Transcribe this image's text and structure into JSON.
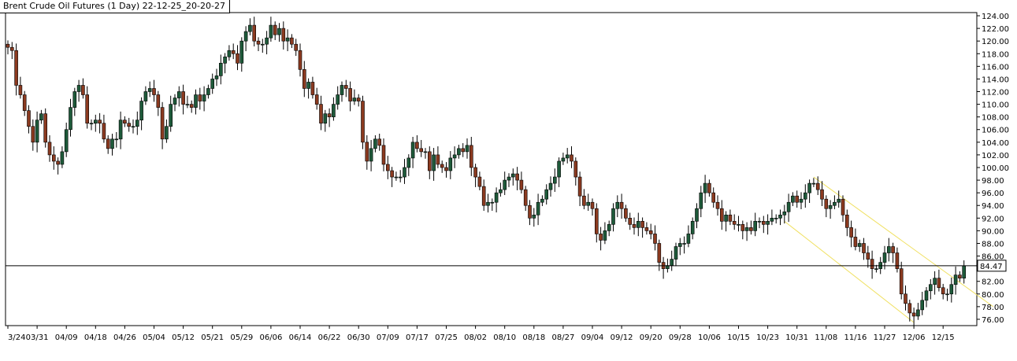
{
  "window": {
    "title": "Brent Crude Oil Futures (1 Day) 22-12-25_20-20-27"
  },
  "colors": {
    "bull": "#1e5a3a",
    "bear": "#8b3a20",
    "wick": "#000000",
    "background": "#ffffff",
    "axis": "#000000",
    "last_price_line": "#000000",
    "channel": "#f0e060"
  },
  "chart_data": {
    "type": "candlestick",
    "title": "Brent Crude Oil Futures (1 Day) 22-12-25_20-20-27",
    "xlabel": "",
    "ylabel": "",
    "ylim": [
      75,
      124.5
    ],
    "grid": false,
    "legend": "none",
    "y_axis_position": "right",
    "y_ticks": [
      "124.00",
      "122.00",
      "120.00",
      "118.00",
      "116.00",
      "114.00",
      "112.00",
      "110.00",
      "108.00",
      "106.00",
      "104.00",
      "102.00",
      "100.00",
      "98.00",
      "96.00",
      "94.00",
      "92.00",
      "90.00",
      "88.00",
      "86.00",
      "84.00",
      "82.00",
      "80.00",
      "78.00",
      "76.00"
    ],
    "x_ticks": [
      {
        "label": "3/24",
        "i": 0
      },
      {
        "label": "03/31",
        "i": 7
      },
      {
        "label": "04/09",
        "i": 14
      },
      {
        "label": "04/18",
        "i": 21
      },
      {
        "label": "04/26",
        "i": 28
      },
      {
        "label": "05/04",
        "i": 35
      },
      {
        "label": "05/12",
        "i": 42
      },
      {
        "label": "05/21",
        "i": 49
      },
      {
        "label": "05/29",
        "i": 56
      },
      {
        "label": "06/06",
        "i": 63
      },
      {
        "label": "06/14",
        "i": 70
      },
      {
        "label": "06/22",
        "i": 77
      },
      {
        "label": "06/30",
        "i": 84
      },
      {
        "label": "07/09",
        "i": 91
      },
      {
        "label": "07/17",
        "i": 98
      },
      {
        "label": "07/25",
        "i": 105
      },
      {
        "label": "08/02",
        "i": 112
      },
      {
        "label": "08/10",
        "i": 119
      },
      {
        "label": "08/18",
        "i": 126
      },
      {
        "label": "08/27",
        "i": 133
      },
      {
        "label": "09/04",
        "i": 140
      },
      {
        "label": "09/12",
        "i": 147
      },
      {
        "label": "09/20",
        "i": 154
      },
      {
        "label": "09/28",
        "i": 161
      },
      {
        "label": "10/06",
        "i": 168
      },
      {
        "label": "10/15",
        "i": 175
      },
      {
        "label": "10/23",
        "i": 182
      },
      {
        "label": "10/31",
        "i": 189
      },
      {
        "label": "11/08",
        "i": 196
      },
      {
        "label": "11/16",
        "i": 203
      },
      {
        "label": "11/27",
        "i": 210
      },
      {
        "label": "12/06",
        "i": 217
      },
      {
        "label": "12/15",
        "i": 224
      }
    ],
    "last_price": 84.47,
    "last_price_label": "84.47",
    "channel": {
      "upper": [
        {
          "i": 193,
          "y": 98.5
        },
        {
          "i": 236,
          "y": 78.0
        }
      ],
      "lower": [
        {
          "i": 186,
          "y": 91.5
        },
        {
          "i": 217,
          "y": 75.5
        }
      ]
    },
    "close": [
      119.0,
      118.5,
      113.0,
      111.5,
      109.0,
      106.5,
      104.0,
      107.5,
      108.5,
      104.0,
      102.0,
      101.0,
      100.5,
      102.5,
      106.0,
      109.5,
      112.0,
      113.0,
      111.5,
      107.0,
      107.0,
      107.5,
      107.0,
      104.5,
      103.0,
      104.5,
      104.5,
      107.5,
      107.0,
      106.5,
      106.5,
      107.5,
      110.5,
      112.0,
      112.5,
      111.5,
      109.5,
      104.5,
      106.5,
      110.0,
      111.0,
      112.0,
      110.0,
      110.0,
      109.5,
      111.5,
      110.5,
      111.5,
      112.5,
      114.0,
      114.5,
      116.5,
      117.5,
      118.5,
      118.0,
      116.5,
      120.0,
      121.5,
      122.5,
      120.0,
      119.5,
      119.5,
      120.5,
      122.5,
      121.0,
      122.0,
      120.0,
      120.5,
      119.5,
      118.5,
      115.5,
      112.5,
      113.5,
      111.5,
      110.0,
      107.0,
      108.5,
      108.0,
      110.0,
      111.5,
      113.0,
      112.5,
      110.5,
      111.0,
      110.5,
      104.0,
      101.0,
      103.0,
      104.5,
      103.5,
      100.5,
      99.5,
      98.5,
      98.5,
      98.5,
      100.0,
      101.5,
      104.0,
      103.0,
      102.5,
      102.5,
      99.5,
      102.0,
      100.5,
      100.0,
      99.5,
      101.5,
      102.0,
      103.0,
      102.5,
      103.5,
      100.0,
      98.5,
      97.0,
      94.0,
      94.5,
      94.5,
      96.0,
      96.5,
      98.0,
      98.5,
      99.0,
      98.0,
      96.5,
      94.0,
      92.0,
      92.5,
      94.5,
      95.0,
      96.5,
      97.5,
      98.5,
      101.0,
      101.5,
      102.0,
      101.0,
      98.5,
      95.5,
      94.0,
      94.5,
      93.5,
      89.5,
      88.5,
      90.0,
      91.0,
      93.5,
      94.5,
      93.5,
      92.0,
      91.0,
      90.5,
      91.5,
      90.5,
      90.0,
      89.5,
      88.0,
      85.0,
      84.0,
      84.5,
      85.5,
      87.5,
      88.0,
      88.0,
      89.5,
      91.5,
      93.5,
      96.0,
      97.5,
      96.0,
      94.5,
      93.5,
      91.5,
      92.5,
      91.5,
      91.0,
      91.0,
      90.0,
      90.5,
      90.0,
      91.5,
      91.5,
      91.0,
      91.5,
      92.0,
      92.0,
      92.5,
      93.0,
      94.5,
      95.5,
      94.5,
      95.0,
      96.0,
      97.5,
      97.5,
      96.5,
      95.0,
      93.5,
      94.0,
      94.5,
      95.0,
      92.5,
      90.5,
      89.0,
      87.5,
      88.0,
      86.5,
      85.5,
      84.0,
      84.0,
      85.0,
      86.5,
      87.5,
      86.5,
      84.0,
      80.0,
      78.5,
      77.0,
      76.5,
      77.5,
      79.0,
      80.5,
      81.5,
      82.5,
      81.0,
      80.0,
      80.0,
      81.5,
      83.0,
      82.5,
      84.47
    ],
    "open": [
      119.5,
      119.0,
      118.5,
      113.0,
      111.5,
      109.0,
      106.5,
      104.0,
      107.5,
      108.5,
      104.0,
      102.0,
      101.0,
      100.5,
      102.5,
      106.0,
      109.5,
      112.0,
      113.0,
      111.5,
      107.0,
      107.0,
      107.5,
      107.0,
      104.5,
      103.0,
      104.5,
      104.5,
      107.5,
      107.0,
      106.5,
      106.5,
      107.5,
      110.5,
      112.0,
      112.5,
      111.5,
      109.5,
      104.5,
      106.5,
      110.0,
      111.0,
      112.0,
      110.0,
      110.0,
      109.5,
      111.5,
      110.5,
      111.5,
      112.5,
      114.0,
      114.5,
      116.5,
      117.5,
      118.5,
      118.0,
      116.5,
      120.0,
      121.5,
      122.5,
      120.0,
      119.5,
      119.5,
      120.5,
      122.5,
      121.0,
      122.0,
      120.0,
      120.5,
      119.5,
      118.5,
      115.5,
      112.5,
      113.5,
      111.5,
      110.0,
      107.0,
      108.5,
      108.0,
      110.0,
      111.5,
      113.0,
      112.5,
      110.5,
      111.0,
      110.5,
      104.0,
      101.0,
      103.0,
      104.5,
      103.5,
      100.5,
      99.5,
      98.5,
      98.5,
      98.5,
      100.0,
      101.5,
      104.0,
      103.0,
      102.5,
      102.5,
      99.5,
      102.0,
      100.5,
      100.0,
      99.5,
      101.5,
      102.0,
      103.0,
      102.5,
      103.5,
      100.0,
      98.5,
      97.0,
      94.0,
      94.5,
      94.5,
      96.0,
      96.5,
      98.0,
      98.5,
      99.0,
      98.0,
      96.5,
      94.0,
      92.0,
      92.5,
      94.5,
      95.0,
      96.5,
      97.5,
      98.5,
      101.0,
      101.5,
      102.0,
      101.0,
      98.5,
      95.5,
      94.0,
      94.5,
      93.5,
      89.5,
      88.5,
      90.0,
      91.0,
      93.5,
      94.5,
      93.5,
      92.0,
      91.0,
      90.5,
      91.5,
      90.5,
      90.0,
      89.5,
      88.0,
      85.0,
      84.0,
      84.5,
      85.5,
      87.5,
      88.0,
      88.0,
      89.5,
      91.5,
      93.5,
      96.0,
      97.5,
      96.0,
      94.5,
      93.5,
      91.5,
      92.5,
      91.5,
      91.0,
      91.0,
      90.0,
      90.5,
      90.0,
      91.5,
      91.5,
      91.0,
      91.5,
      92.0,
      92.0,
      92.5,
      93.0,
      94.5,
      95.5,
      94.5,
      95.0,
      96.0,
      97.5,
      97.5,
      96.5,
      95.0,
      93.5,
      94.0,
      94.5,
      95.0,
      92.5,
      90.5,
      89.0,
      87.5,
      88.0,
      86.5,
      85.5,
      84.0,
      84.0,
      85.0,
      86.5,
      87.5,
      86.5,
      84.0,
      80.0,
      78.5,
      77.0,
      76.5,
      77.5,
      79.0,
      80.5,
      81.5,
      82.5,
      81.0,
      80.0,
      80.0,
      81.5,
      83.0,
      82.5
    ]
  }
}
